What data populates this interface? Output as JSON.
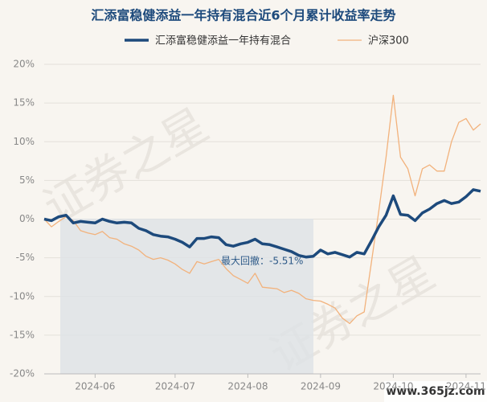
{
  "chart_data": {
    "type": "line",
    "title": "汇添富稳健添益一年持有混合近6个月累计收益率走势",
    "annotation": "最大回撤：-5.51%",
    "watermark": "证券之星",
    "site_watermark": "www.365jz.com",
    "categories": [
      null,
      null,
      null,
      null,
      null,
      null,
      null,
      "2024-06",
      null,
      null,
      null,
      null,
      null,
      null,
      null,
      null,
      null,
      null,
      "2024-07",
      null,
      null,
      null,
      null,
      null,
      null,
      null,
      null,
      null,
      "2024-08",
      null,
      null,
      null,
      null,
      null,
      null,
      null,
      null,
      null,
      "2024-09",
      null,
      null,
      null,
      null,
      null,
      null,
      null,
      null,
      null,
      "2024-10",
      null,
      null,
      null,
      null,
      null,
      null,
      null,
      null,
      null,
      "2024-11",
      null,
      null
    ],
    "series": [
      {
        "name": "汇添富稳健添益一年持有混合",
        "color": "#1d4a7c",
        "width": 3.5,
        "values": [
          0,
          -0.2,
          0.3,
          0.5,
          -0.5,
          -0.3,
          -0.4,
          -0.5,
          0,
          -0.3,
          -0.5,
          -0.4,
          -0.5,
          -1.2,
          -1.5,
          -2.0,
          -2.2,
          -2.3,
          -2.6,
          -3.0,
          -3.6,
          -2.5,
          -2.5,
          -2.3,
          -2.4,
          -3.3,
          -3.5,
          -3.2,
          -3.0,
          -2.6,
          -3.2,
          -3.3,
          -3.6,
          -3.9,
          -4.2,
          -4.7,
          -4.9,
          -4.8,
          -4.0,
          -4.5,
          -4.3,
          -4.6,
          -4.9,
          -4.3,
          -4.5,
          -2.8,
          -1.0,
          0.5,
          3.0,
          0.6,
          0.5,
          -0.2,
          0.8,
          1.3,
          2.0,
          2.4,
          2.0,
          2.2,
          2.9,
          3.8,
          3.6
        ]
      },
      {
        "name": "沪深300",
        "color": "#f2b27c",
        "width": 1.3,
        "values": [
          0,
          -1.0,
          -0.3,
          0.3,
          -0.2,
          -1.5,
          -1.8,
          -2.0,
          -1.6,
          -2.4,
          -2.6,
          -3.2,
          -3.5,
          -4.0,
          -4.8,
          -5.2,
          -5.0,
          -5.3,
          -5.8,
          -6.5,
          -7.0,
          -5.5,
          -5.8,
          -5.5,
          -5.2,
          -6.4,
          -7.3,
          -7.8,
          -8.3,
          -7.0,
          -8.8,
          -8.9,
          -9.0,
          -9.5,
          -9.2,
          -9.6,
          -10.3,
          -10.5,
          -10.6,
          -11.0,
          -11.5,
          -12.8,
          -13.5,
          -12.5,
          -12.0,
          -5.5,
          1.0,
          8.0,
          16.0,
          8.0,
          6.5,
          3.0,
          6.5,
          7.0,
          6.2,
          6.2,
          10.0,
          12.5,
          13.0,
          11.5,
          12.3
        ]
      }
    ],
    "ylim": [
      -20,
      20
    ],
    "yticks": [
      {
        "value": 20,
        "label": "20%"
      },
      {
        "value": 15,
        "label": "15%"
      },
      {
        "value": 10,
        "label": "10%"
      },
      {
        "value": 5,
        "label": "5%"
      },
      {
        "value": 0,
        "label": "0%"
      },
      {
        "value": -5,
        "label": "-5%"
      },
      {
        "value": -10,
        "label": "-10%"
      },
      {
        "value": -15,
        "label": "-15%"
      },
      {
        "value": -20,
        "label": "-20%"
      }
    ],
    "grid": true
  }
}
